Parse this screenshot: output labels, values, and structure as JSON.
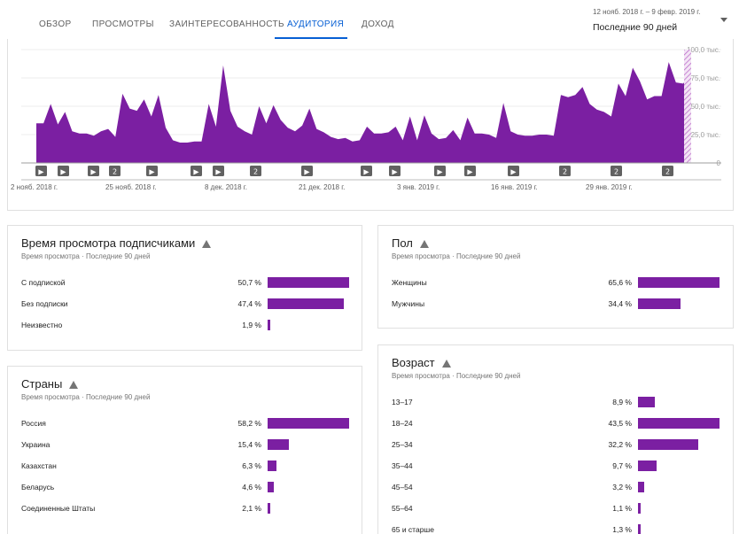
{
  "tabs": [
    {
      "label": "Обзор",
      "active": false
    },
    {
      "label": "Просмотры",
      "active": false
    },
    {
      "label": "Заинтересованность",
      "active": false
    },
    {
      "label": "Аудитория",
      "active": true
    },
    {
      "label": "Доход",
      "active": false
    }
  ],
  "date_range": {
    "dates": "12 нояб. 2018 г. – 9 февр. 2019 г.",
    "label": "Последние 90 дней"
  },
  "accent_color": "#065fd4",
  "bar_color": "#7b1fa2",
  "chart_data": {
    "type": "area",
    "y_ticks": [
      "100,0 тыс.",
      "75,0 тыс.",
      "50,0 тыс.",
      "25,0 тыс.",
      "0"
    ],
    "ylim": [
      0,
      100
    ],
    "x_tick_labels": [
      "2 нояб. 2018 г.",
      "25 нояб. 2018 г.",
      "8 дек. 2018 г.",
      "21 дек. 2018 г.",
      "3 янв. 2019 г.",
      "16 янв. 2019 г.",
      "29 янв. 2019 г."
    ],
    "values": [
      35,
      35,
      52,
      34,
      45,
      28,
      26,
      26,
      24,
      28,
      30,
      23,
      61,
      48,
      46,
      56,
      41,
      60,
      31,
      20,
      18,
      18,
      19,
      19,
      52,
      32,
      86,
      46,
      32,
      28,
      25,
      50,
      35,
      51,
      38,
      31,
      28,
      33,
      48,
      30,
      27,
      23,
      21,
      22,
      19,
      20,
      32,
      26,
      26,
      27,
      32,
      20,
      41,
      20,
      42,
      26,
      21,
      22,
      29,
      20,
      40,
      26,
      26,
      25,
      22,
      53,
      28,
      25,
      24,
      24,
      25,
      25,
      24,
      60,
      58,
      60,
      67,
      52,
      47,
      45,
      41,
      70,
      59,
      84,
      72,
      56,
      59,
      59,
      89,
      71,
      70,
      77
    ],
    "markers": [
      "▶",
      "▶",
      "▶",
      "2",
      "▶",
      "▶",
      "▶",
      "2",
      "▶",
      "▶",
      "▶",
      "▶",
      "▶",
      "▶",
      "2",
      "2",
      "2"
    ]
  },
  "subscribers": {
    "title": "Время просмотра подписчиками",
    "subtitle": "Время просмотра · Последние 90 дней",
    "rows": [
      {
        "label": "С подпиской",
        "pct": "50,7 %",
        "value": 50.7
      },
      {
        "label": "Без подписки",
        "pct": "47,4 %",
        "value": 47.4
      },
      {
        "label": "Неизвестно",
        "pct": "1,9 %",
        "value": 1.9
      }
    ]
  },
  "countries": {
    "title": "Страны",
    "subtitle": "Время просмотра · Последние 90 дней",
    "rows": [
      {
        "label": "Россия",
        "pct": "58,2 %",
        "value": 58.2
      },
      {
        "label": "Украина",
        "pct": "15,4 %",
        "value": 15.4
      },
      {
        "label": "Казахстан",
        "pct": "6,3 %",
        "value": 6.3
      },
      {
        "label": "Беларусь",
        "pct": "4,6 %",
        "value": 4.6
      },
      {
        "label": "Соединенные Штаты",
        "pct": "2,1 %",
        "value": 2.1
      }
    ]
  },
  "gender": {
    "title": "Пол",
    "subtitle": "Время просмотра · Последние 90 дней",
    "rows": [
      {
        "label": "Женщины",
        "pct": "65,6 %",
        "value": 65.6
      },
      {
        "label": "Мужчины",
        "pct": "34,4 %",
        "value": 34.4
      }
    ]
  },
  "age": {
    "title": "Возраст",
    "subtitle": "Время просмотра · Последние 90 дней",
    "rows": [
      {
        "label": "13–17",
        "pct": "8,9 %",
        "value": 8.9
      },
      {
        "label": "18–24",
        "pct": "43,5 %",
        "value": 43.5
      },
      {
        "label": "25–34",
        "pct": "32,2 %",
        "value": 32.2
      },
      {
        "label": "35–44",
        "pct": "9,7 %",
        "value": 9.7
      },
      {
        "label": "45–54",
        "pct": "3,2 %",
        "value": 3.2
      },
      {
        "label": "55–64",
        "pct": "1,1 %",
        "value": 1.1
      },
      {
        "label": "65 и старше",
        "pct": "1,3 %",
        "value": 1.3
      }
    ]
  }
}
